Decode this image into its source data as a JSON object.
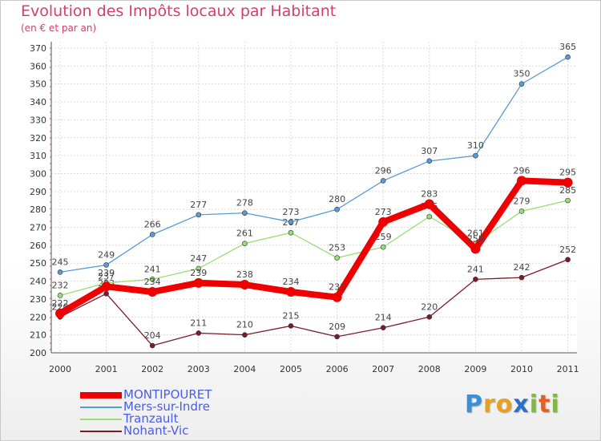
{
  "title": "Evolution des Impôts locaux par Habitant",
  "subtitle": "(en € et par an)",
  "logo": {
    "text": "Proxiti",
    "letters": [
      "P",
      "r",
      "o",
      "x",
      "i",
      "t",
      "i"
    ],
    "colors": [
      "#3a8fd8",
      "#e8a020",
      "#e8a020",
      "#2a6fc8",
      "#80b840",
      "#e86020",
      "#80b840"
    ]
  },
  "chart_data": {
    "type": "line",
    "title": "Evolution des Impôts locaux par Habitant",
    "subtitle": "(en € et par an)",
    "xlabel": "",
    "ylabel": "",
    "categories": [
      "2000",
      "2001",
      "2002",
      "2003",
      "2004",
      "2005",
      "2006",
      "2007",
      "2008",
      "2009",
      "2010",
      "2011"
    ],
    "ylim": [
      200,
      370
    ],
    "yticks": [
      200,
      210,
      220,
      230,
      240,
      250,
      260,
      270,
      280,
      290,
      300,
      310,
      320,
      330,
      340,
      350,
      360,
      370
    ],
    "grid": true,
    "legend_position": "bottom-left",
    "series": [
      {
        "name": "Nohant-Vic",
        "color": "#7a1c28",
        "values": [
          220,
          233,
          204,
          211,
          210,
          215,
          209,
          214,
          220,
          241,
          242,
          252
        ]
      },
      {
        "name": "Tranzault",
        "color": "#99dd77",
        "values": [
          232,
          239,
          241,
          247,
          261,
          267,
          253,
          259,
          276,
          261,
          279,
          285
        ]
      },
      {
        "name": "Mers-sur-Indre",
        "color": "#5a9bd5",
        "values": [
          245,
          249,
          266,
          277,
          278,
          273,
          280,
          296,
          307,
          310,
          350,
          365
        ]
      },
      {
        "name": "MONTIPOURET",
        "color": "#ee0000",
        "values": [
          222,
          237,
          234,
          239,
          238,
          234,
          231,
          273,
          283,
          258,
          296,
          295
        ],
        "emphasis": true
      }
    ],
    "legend_order": [
      "MONTIPOURET",
      "Mers-sur-Indre",
      "Tranzault",
      "Nohant-Vic"
    ]
  }
}
